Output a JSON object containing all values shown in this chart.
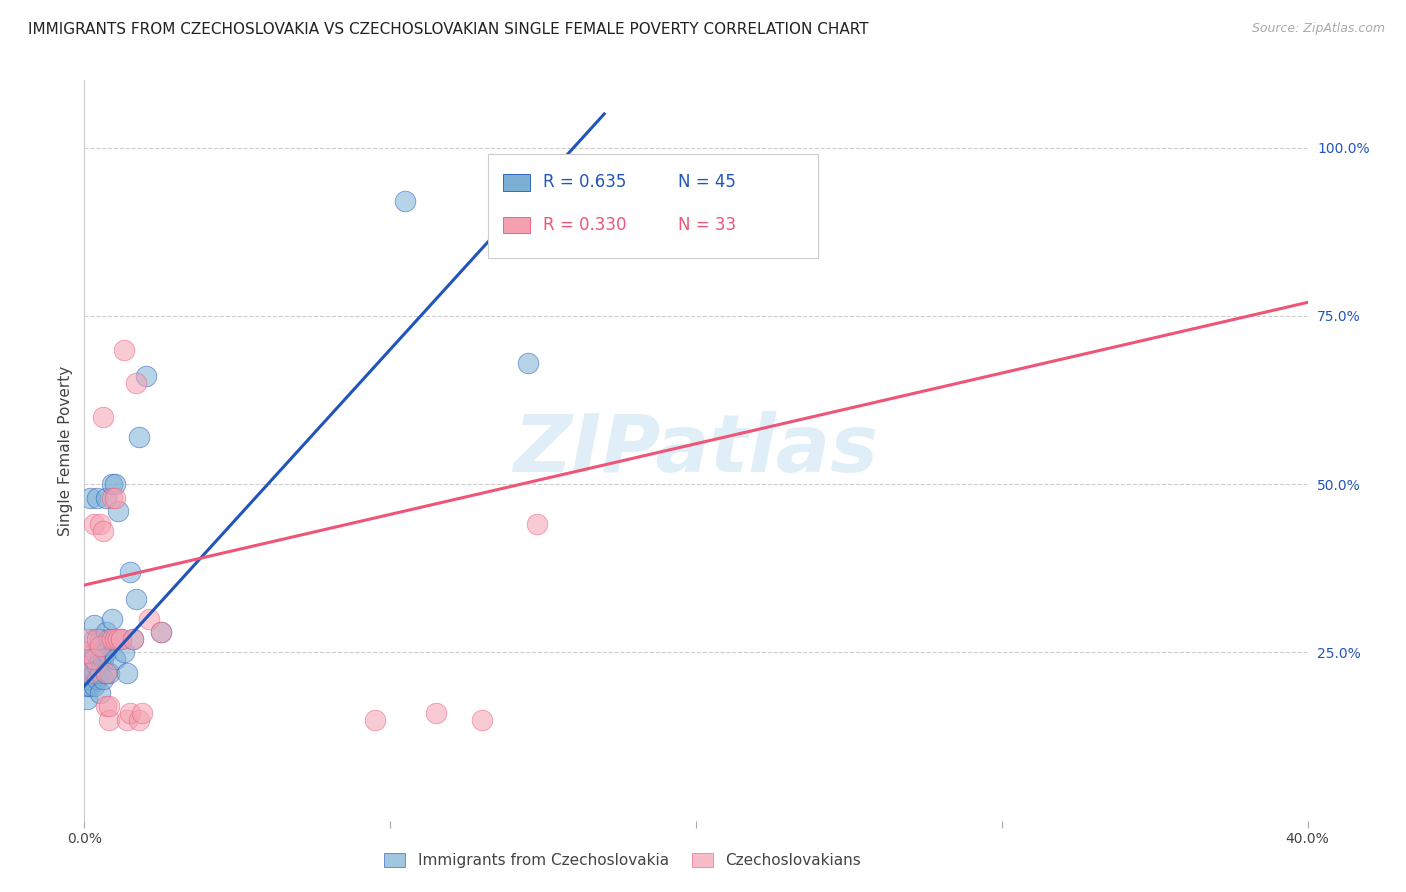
{
  "title": "IMMIGRANTS FROM CZECHOSLOVAKIA VS CZECHOSLOVAKIAN SINGLE FEMALE POVERTY CORRELATION CHART",
  "source": "Source: ZipAtlas.com",
  "ylabel": "Single Female Poverty",
  "ytick_labels": [
    "100.0%",
    "75.0%",
    "50.0%",
    "25.0%"
  ],
  "ytick_values": [
    1.0,
    0.75,
    0.5,
    0.25
  ],
  "legend_labels": [
    "Immigrants from Czechoslovakia",
    "Czechoslovakians"
  ],
  "blue_R": "R = 0.635",
  "blue_N": "N = 45",
  "pink_R": "R = 0.330",
  "pink_N": "N = 33",
  "blue_color": "#7BAFD4",
  "pink_color": "#F4A0B0",
  "blue_line_color": "#2255BB",
  "pink_line_color": "#EE5577",
  "watermark_text": "ZIPatlas",
  "watermark_color": "#BBDDEE",
  "title_fontsize": 11,
  "source_fontsize": 9,
  "blue_scatter_x": [
    0.001,
    0.001,
    0.001,
    0.001,
    0.002,
    0.002,
    0.002,
    0.002,
    0.003,
    0.003,
    0.003,
    0.003,
    0.003,
    0.004,
    0.004,
    0.004,
    0.005,
    0.005,
    0.005,
    0.005,
    0.006,
    0.006,
    0.006,
    0.007,
    0.007,
    0.007,
    0.007,
    0.008,
    0.008,
    0.009,
    0.009,
    0.01,
    0.01,
    0.011,
    0.012,
    0.013,
    0.014,
    0.015,
    0.016,
    0.017,
    0.018,
    0.02,
    0.025,
    0.105,
    0.145
  ],
  "blue_scatter_y": [
    0.18,
    0.2,
    0.21,
    0.22,
    0.2,
    0.22,
    0.24,
    0.48,
    0.2,
    0.22,
    0.25,
    0.27,
    0.29,
    0.21,
    0.23,
    0.48,
    0.19,
    0.22,
    0.24,
    0.27,
    0.21,
    0.24,
    0.26,
    0.22,
    0.25,
    0.28,
    0.48,
    0.22,
    0.27,
    0.3,
    0.5,
    0.24,
    0.5,
    0.46,
    0.27,
    0.25,
    0.22,
    0.37,
    0.27,
    0.33,
    0.57,
    0.66,
    0.28,
    0.92,
    0.68
  ],
  "pink_scatter_x": [
    0.001,
    0.001,
    0.002,
    0.003,
    0.003,
    0.004,
    0.005,
    0.005,
    0.006,
    0.006,
    0.007,
    0.007,
    0.008,
    0.008,
    0.009,
    0.009,
    0.01,
    0.01,
    0.011,
    0.012,
    0.013,
    0.014,
    0.015,
    0.016,
    0.017,
    0.018,
    0.019,
    0.021,
    0.025,
    0.095,
    0.115,
    0.13,
    0.148
  ],
  "pink_scatter_y": [
    0.25,
    0.27,
    0.22,
    0.24,
    0.44,
    0.27,
    0.26,
    0.44,
    0.43,
    0.6,
    0.17,
    0.22,
    0.15,
    0.17,
    0.27,
    0.48,
    0.27,
    0.48,
    0.27,
    0.27,
    0.7,
    0.15,
    0.16,
    0.27,
    0.65,
    0.15,
    0.16,
    0.3,
    0.28,
    0.15,
    0.16,
    0.15,
    0.44
  ],
  "blue_line_x0": 0.0,
  "blue_line_y0": 0.2,
  "blue_line_x1": 0.17,
  "blue_line_y1": 1.05,
  "pink_line_x0": 0.0,
  "pink_line_y0": 0.35,
  "pink_line_x1": 0.4,
  "pink_line_y1": 0.77,
  "xlim": [
    0.0,
    0.4
  ],
  "ylim": [
    0.0,
    1.1
  ],
  "xtick_positions": [
    0.0,
    0.1,
    0.2,
    0.3,
    0.4
  ],
  "xtick_labels": [
    "0.0%",
    "",
    "",
    "",
    "40.0%"
  ],
  "figsize": [
    14.06,
    8.92
  ],
  "dpi": 100
}
